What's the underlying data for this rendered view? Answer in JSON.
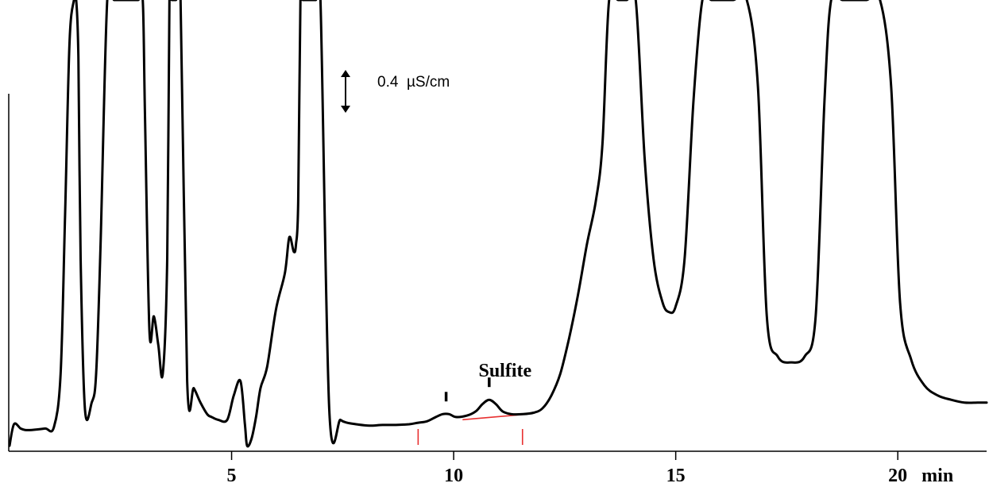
{
  "chart_data": {
    "type": "line",
    "title": "",
    "xlabel": "",
    "ylabel": "",
    "x_unit": "min",
    "xlim": [
      0,
      22
    ],
    "ylim": [
      -0.1,
      3.0
    ],
    "x_ticks": [
      {
        "value": 5,
        "label": "5"
      },
      {
        "value": 10,
        "label": "10"
      },
      {
        "value": 15,
        "label": "15"
      },
      {
        "value": 20,
        "label": "20"
      }
    ],
    "grid": false,
    "legend": "none",
    "scale_bar": {
      "value": 0.4,
      "unit": "µS/cm",
      "label": "0.4  µS/cm"
    },
    "annotations": [
      {
        "text": "Sulfite",
        "x": 10.8
      }
    ],
    "peak_markers": [
      9.83,
      10.8
    ],
    "baseline_marks": [
      {
        "kind": "drop",
        "x": 9.2
      },
      {
        "kind": "drop",
        "x": 11.55
      },
      {
        "kind": "baseline",
        "x": [
          10.2,
          11.55
        ],
        "y": [
          0.081,
          0.117
        ]
      }
    ],
    "series": [
      {
        "color": "#000000",
        "x": [
          0.0,
          0.1,
          0.25,
          0.35,
          0.5,
          0.8,
          1.0,
          1.15,
          1.25,
          1.35,
          1.45,
          1.5,
          1.55,
          1.6,
          1.7,
          1.85,
          1.95,
          2.05,
          2.2,
          2.35,
          2.5,
          2.6,
          2.75,
          2.9,
          3.0,
          3.05,
          3.15,
          3.25,
          3.35,
          3.45,
          3.55,
          3.6,
          3.65,
          3.75,
          3.85,
          4.0,
          4.15,
          4.3,
          4.45,
          4.55,
          4.7,
          4.9,
          5.05,
          5.2,
          5.3,
          5.35,
          5.45,
          5.55,
          5.65,
          5.8,
          6.0,
          6.2,
          6.3,
          6.4,
          6.45,
          6.5,
          6.55,
          6.6,
          6.7,
          6.8,
          6.9,
          7.0,
          7.2,
          7.45,
          7.6,
          7.8,
          8.1,
          8.4,
          8.7,
          9.0,
          9.2,
          9.4,
          9.6,
          9.75,
          9.9,
          10.05,
          10.3,
          10.5,
          10.65,
          10.8,
          10.95,
          11.1,
          11.3,
          11.55,
          11.8,
          12.0,
          12.2,
          12.4,
          12.6,
          12.8,
          13.0,
          13.2,
          13.35,
          13.5,
          13.7,
          13.9,
          14.1,
          14.3,
          14.5,
          14.7,
          14.85,
          15.0,
          15.2,
          15.4,
          15.6,
          15.8,
          16.0,
          16.3,
          16.6,
          16.85,
          17.05,
          17.3,
          17.6,
          17.9,
          18.15,
          18.35,
          18.5,
          18.75,
          19.0,
          19.3,
          19.6,
          19.85,
          20.05,
          20.3,
          20.6,
          20.9,
          21.2,
          21.5,
          21.8,
          22.0
        ],
        "y": [
          -0.1,
          0.05,
          0.02,
          0.01,
          0.01,
          0.02,
          0.03,
          0.4,
          1.5,
          2.7,
          3.0,
          3.0,
          2.6,
          1.2,
          0.15,
          0.2,
          0.4,
          1.3,
          3.0,
          3.0,
          3.0,
          3.0,
          3.0,
          3.0,
          3.0,
          2.2,
          0.7,
          0.8,
          0.6,
          0.4,
          1.2,
          3.0,
          3.0,
          3.0,
          3.0,
          0.35,
          0.3,
          0.2,
          0.12,
          0.1,
          0.08,
          0.08,
          0.25,
          0.35,
          0.05,
          -0.1,
          -0.05,
          0.1,
          0.3,
          0.45,
          0.85,
          1.1,
          1.35,
          1.25,
          1.3,
          1.6,
          3.0,
          3.0,
          3.0,
          3.0,
          3.0,
          3.0,
          0.15,
          0.08,
          0.06,
          0.05,
          0.04,
          0.045,
          0.045,
          0.05,
          0.06,
          0.07,
          0.1,
          0.12,
          0.12,
          0.1,
          0.11,
          0.14,
          0.19,
          0.22,
          0.19,
          0.14,
          0.12,
          0.12,
          0.13,
          0.16,
          0.25,
          0.4,
          0.65,
          0.95,
          1.3,
          1.6,
          2.0,
          3.0,
          3.0,
          3.0,
          3.0,
          1.9,
          1.2,
          0.9,
          0.83,
          0.87,
          1.2,
          2.3,
          3.0,
          3.0,
          3.0,
          3.0,
          3.0,
          2.4,
          0.8,
          0.52,
          0.48,
          0.52,
          0.8,
          2.3,
          3.0,
          3.0,
          3.0,
          3.0,
          3.0,
          2.4,
          0.9,
          0.5,
          0.32,
          0.25,
          0.22,
          0.2,
          0.2,
          0.2
        ]
      }
    ]
  }
}
